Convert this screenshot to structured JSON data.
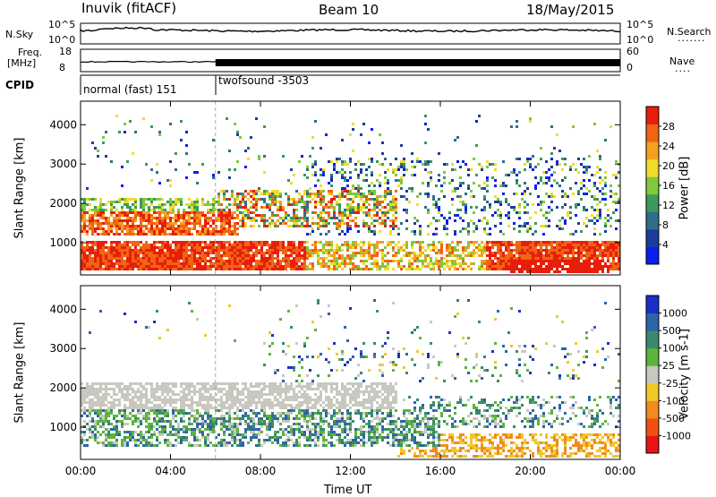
{
  "header": {
    "station": "Inuvik (fitACF)",
    "beam": "Beam 10",
    "date": "18/May/2015"
  },
  "summary_panels": {
    "nsky": {
      "label": "N.Sky",
      "tick_top": "10^5",
      "tick_bottom": "10^0"
    },
    "nsearch": {
      "label": "N.Search",
      "tick_top": "10^5",
      "tick_bottom": "10^0"
    },
    "freq": {
      "label_line1": "Freq.",
      "label_line2": "[MHz]",
      "tick_top": "18",
      "tick_bottom": "8"
    },
    "nave": {
      "label": "Nave",
      "tick_top": "60",
      "tick_bottom": "0"
    },
    "cpid": {
      "label": "CPID",
      "modes": [
        {
          "name": "normal (fast) 151",
          "start_hour": 0,
          "end_hour": 6
        },
        {
          "name": "twofsound -3503",
          "start_hour": 6,
          "end_hour": 24
        }
      ]
    }
  },
  "chart_data": [
    {
      "type": "heatmap",
      "title": "",
      "xlabel": "",
      "ylabel": "Slant Range [km]",
      "x_range_hours": [
        0,
        24
      ],
      "xticks": [
        "00:00",
        "04:00",
        "08:00",
        "12:00",
        "16:00",
        "20:00",
        "00:00"
      ],
      "ylim": [
        180,
        4600
      ],
      "yticks": [
        1000,
        2000,
        3000,
        4000
      ],
      "colorbar": {
        "label": "Power [dB]",
        "ticks": [
          "4",
          "8",
          "12",
          "16",
          "20",
          "24",
          "28"
        ],
        "colors": [
          "#0a1ef0",
          "#1e3c9c",
          "#2e6e8a",
          "#3c9a5a",
          "#7fc93a",
          "#f0dc28",
          "#f5a01e",
          "#f06414",
          "#e81e0a"
        ]
      },
      "features": [
        {
          "name": "strong low-range band",
          "start_hour": 0,
          "end_hour": 24,
          "range_km": [
            400,
            1100
          ],
          "level_db": 26
        },
        {
          "name": "mid-range band",
          "start_hour": 0,
          "end_hour": 6,
          "range_km": [
            1300,
            1700
          ],
          "level_db": 22
        },
        {
          "name": "high-range patches",
          "start_hour": 6,
          "end_hour": 14,
          "range_km": [
            1600,
            2400
          ],
          "level_db": 24
        }
      ]
    },
    {
      "type": "heatmap",
      "title": "",
      "xlabel": "Time UT",
      "ylabel": "Slant Range [km]",
      "x_range_hours": [
        0,
        24
      ],
      "xticks": [
        "00:00",
        "04:00",
        "08:00",
        "12:00",
        "16:00",
        "20:00",
        "00:00"
      ],
      "ylim": [
        180,
        4600
      ],
      "yticks": [
        1000,
        2000,
        3000,
        4000
      ],
      "colorbar": {
        "label": "Velocity [m s-1]",
        "ticks": [
          "1000",
          "500",
          "100",
          "25",
          "-25",
          "-100",
          "-500",
          "-1000"
        ],
        "colors": [
          "#1e2ec8",
          "#2e64a8",
          "#3a8a6e",
          "#5cb43c",
          "#c8c8c0",
          "#f0c828",
          "#f08c1e",
          "#f05014",
          "#e81414"
        ]
      },
      "features": [
        {
          "name": "ground scatter band",
          "start_hour": 0,
          "end_hour": 14,
          "range_km": [
            1600,
            2200
          ],
          "velocity": 0
        },
        {
          "name": "positive velocity region",
          "start_hour": 0,
          "end_hour": 16,
          "range_km": [
            500,
            1600
          ],
          "velocity": 300
        },
        {
          "name": "negative velocity region",
          "start_hour": 14,
          "end_hour": 24,
          "range_km": [
            300,
            900
          ],
          "velocity": -150
        }
      ]
    }
  ]
}
